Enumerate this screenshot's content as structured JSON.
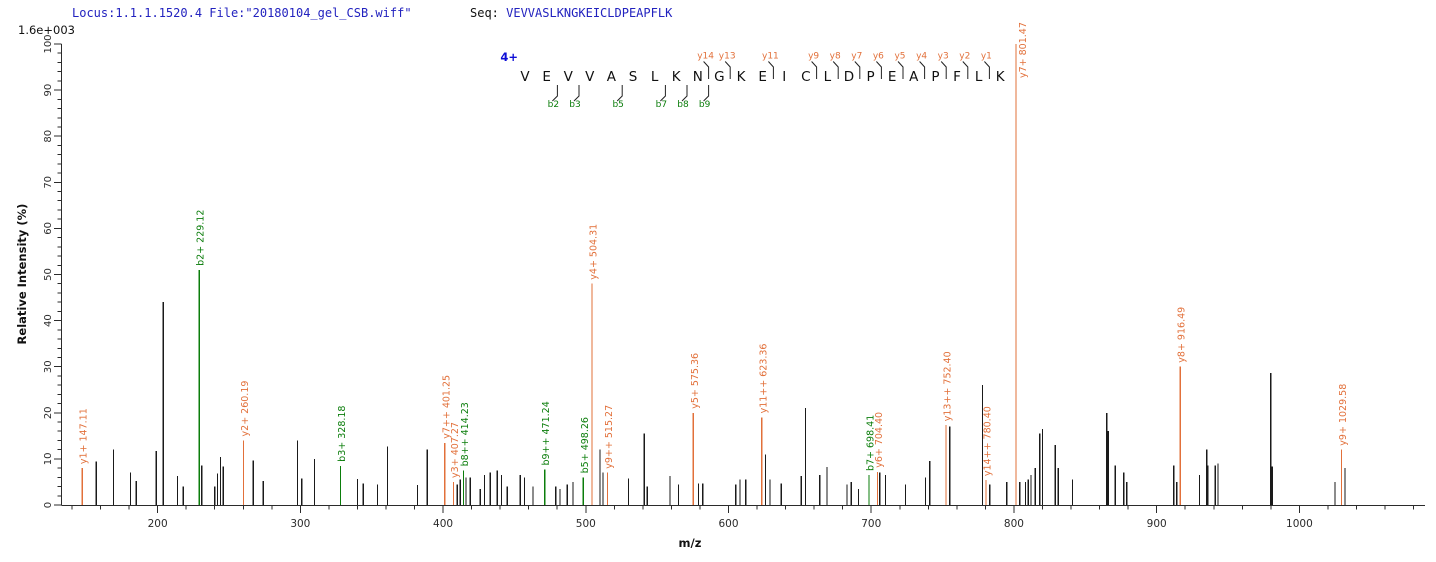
{
  "header": {
    "locus_text": "Locus:1.1.1.1520.4 File:\"20180104_gel_CSB.wiff\"",
    "seq_label": "Seq: ",
    "seq_value": "VEVVASLKNGKEICLDPEAPFLK"
  },
  "colors": {
    "y_ion": "#E2703A",
    "b_ion": "#0B7D0B",
    "peak": "#1A1A1A",
    "header_text": "#2222BF",
    "charge": "#0D0DD6",
    "axis": "#2B2B2B"
  },
  "sequence_ladder": {
    "charge_label": "4+",
    "residues": [
      "V",
      "E",
      "V",
      "V",
      "A",
      "S",
      "L",
      "K",
      "N",
      "G",
      "K",
      "E",
      "I",
      "C",
      "L",
      "D",
      "P",
      "E",
      "A",
      "P",
      "F",
      "L",
      "K"
    ],
    "y_ions": [
      {
        "name": "y14",
        "after_residue": 9
      },
      {
        "name": "y13",
        "after_residue": 10
      },
      {
        "name": "y11",
        "after_residue": 12
      },
      {
        "name": "y9",
        "after_residue": 14
      },
      {
        "name": "y8",
        "after_residue": 15
      },
      {
        "name": "y7",
        "after_residue": 16
      },
      {
        "name": "y6",
        "after_residue": 17
      },
      {
        "name": "y5",
        "after_residue": 18
      },
      {
        "name": "y4",
        "after_residue": 19
      },
      {
        "name": "y3",
        "after_residue": 20
      },
      {
        "name": "y2",
        "after_residue": 21
      },
      {
        "name": "y1",
        "after_residue": 22
      }
    ],
    "b_ions": [
      {
        "name": "b2",
        "after_residue": 2
      },
      {
        "name": "b3",
        "after_residue": 3
      },
      {
        "name": "b5",
        "after_residue": 5
      },
      {
        "name": "b7",
        "after_residue": 7
      },
      {
        "name": "b8",
        "after_residue": 8
      },
      {
        "name": "b9",
        "after_residue": 9
      }
    ]
  },
  "chart_data": {
    "type": "bar",
    "variant": "ms2-centroid-spectrum",
    "title": "",
    "xlabel": "m/z",
    "ylabel": "Relative  Intensity (%)",
    "intensity_scale_note": "1.6e+003",
    "xlim": [
      133,
      1088
    ],
    "ylim": [
      0,
      100
    ],
    "x_major_ticks": [
      200,
      300,
      400,
      500,
      600,
      700,
      800,
      900,
      1000
    ],
    "x_minor_step": 20,
    "y_major_step": 10,
    "y_minor_step": 2,
    "grid": false,
    "legend": "none",
    "annotated_peaks": [
      {
        "label": "y1+ 147.11",
        "mz": 147.11,
        "intensity": 8,
        "series": "y"
      },
      {
        "label": "b2+ 229.12",
        "mz": 229.12,
        "intensity": 51,
        "series": "b"
      },
      {
        "label": "y2+ 260.19",
        "mz": 260.19,
        "intensity": 14,
        "series": "y"
      },
      {
        "label": "b3+ 328.18",
        "mz": 328.18,
        "intensity": 8.5,
        "series": "b"
      },
      {
        "label": "y7++ 401.25",
        "mz": 401.25,
        "intensity": 13.5,
        "series": "y"
      },
      {
        "label": "y3+ 407.27",
        "mz": 407.27,
        "intensity": 5,
        "series": "y"
      },
      {
        "label": "b8++ 414.23",
        "mz": 414.23,
        "intensity": 7.5,
        "series": "b"
      },
      {
        "label": "b9++ 471.24",
        "mz": 471.24,
        "intensity": 7.7,
        "series": "b"
      },
      {
        "label": "b5+ 498.26",
        "mz": 498.26,
        "intensity": 6,
        "series": "b"
      },
      {
        "label": "y4+ 504.31",
        "mz": 504.31,
        "intensity": 48,
        "series": "y"
      },
      {
        "label": "y9++ 515.27",
        "mz": 515.27,
        "intensity": 7,
        "series": "y"
      },
      {
        "label": "y5+ 575.36",
        "mz": 575.36,
        "intensity": 20,
        "series": "y"
      },
      {
        "label": "y11++ 623.36",
        "mz": 623.36,
        "intensity": 19,
        "series": "y"
      },
      {
        "label": "b7+ 698.41",
        "mz": 698.41,
        "intensity": 6.5,
        "series": "b"
      },
      {
        "label": "y6+ 704.40",
        "mz": 704.4,
        "intensity": 7.2,
        "series": "y"
      },
      {
        "label": "y13++ 752.40",
        "mz": 752.4,
        "intensity": 17.3,
        "series": "y"
      },
      {
        "label": "y14++ 780.40",
        "mz": 780.4,
        "intensity": 5.4,
        "series": "y"
      },
      {
        "label": "y7+ 801.47",
        "mz": 801.47,
        "intensity": 100,
        "series": "y"
      },
      {
        "label": "y8+ 916.49",
        "mz": 916.49,
        "intensity": 30,
        "series": "y"
      },
      {
        "label": "y9+ 1029.58",
        "mz": 1029.58,
        "intensity": 12,
        "series": "y"
      }
    ],
    "unlabeled_peaks": [
      [
        157,
        9.4
      ],
      [
        169,
        12
      ],
      [
        181,
        7
      ],
      [
        185,
        5.2
      ],
      [
        199,
        11.7
      ],
      [
        204,
        44
      ],
      [
        214,
        6.3
      ],
      [
        218,
        4
      ],
      [
        231,
        8.6
      ],
      [
        240,
        4
      ],
      [
        242,
        6.8
      ],
      [
        244,
        10.4
      ],
      [
        246,
        8.3
      ],
      [
        267,
        9.7
      ],
      [
        274,
        5.2
      ],
      [
        298,
        14
      ],
      [
        301,
        5.8
      ],
      [
        310,
        10
      ],
      [
        340,
        5.6
      ],
      [
        344,
        4.7
      ],
      [
        354,
        4.5
      ],
      [
        361,
        12.7
      ],
      [
        382,
        4.3
      ],
      [
        389,
        12
      ],
      [
        410,
        4.5
      ],
      [
        412,
        5.5
      ],
      [
        416,
        6
      ],
      [
        419,
        6
      ],
      [
        426,
        3.5
      ],
      [
        429,
        6.5
      ],
      [
        433,
        7
      ],
      [
        438,
        7.5
      ],
      [
        441,
        6.5
      ],
      [
        445,
        4
      ],
      [
        454,
        6.5
      ],
      [
        457,
        6
      ],
      [
        463,
        4
      ],
      [
        479,
        4
      ],
      [
        482,
        3.5
      ],
      [
        487,
        4.5
      ],
      [
        491,
        5
      ],
      [
        510,
        12
      ],
      [
        512,
        7
      ],
      [
        530,
        5.8
      ],
      [
        541,
        15.5
      ],
      [
        543,
        4
      ],
      [
        559,
        6.3
      ],
      [
        565,
        4.5
      ],
      [
        579,
        4.7
      ],
      [
        582,
        4.7
      ],
      [
        605,
        4.5
      ],
      [
        608,
        5.5
      ],
      [
        612,
        5.5
      ],
      [
        626,
        11
      ],
      [
        629,
        5.5
      ],
      [
        637,
        4.7
      ],
      [
        651,
        6.3
      ],
      [
        654,
        21
      ],
      [
        664,
        6.5
      ],
      [
        669,
        8.2
      ],
      [
        683,
        4.5
      ],
      [
        686,
        5
      ],
      [
        691,
        3.5
      ],
      [
        706,
        7
      ],
      [
        710,
        6.5
      ],
      [
        724,
        4.5
      ],
      [
        738,
        6
      ],
      [
        741,
        9.5
      ],
      [
        755,
        17
      ],
      [
        778,
        26
      ],
      [
        783,
        4.5
      ],
      [
        795,
        5
      ],
      [
        804,
        5
      ],
      [
        808,
        5
      ],
      [
        810,
        5.5
      ],
      [
        812,
        6.5
      ],
      [
        815,
        8
      ],
      [
        818,
        15.5
      ],
      [
        820,
        16.5
      ],
      [
        829,
        13
      ],
      [
        831,
        8
      ],
      [
        841,
        5.5
      ],
      [
        865,
        20
      ],
      [
        866,
        16
      ],
      [
        871,
        8.6
      ],
      [
        877,
        7
      ],
      [
        879,
        5
      ],
      [
        912,
        8.6
      ],
      [
        914,
        5
      ],
      [
        930,
        6.5
      ],
      [
        935,
        12
      ],
      [
        936,
        8.6
      ],
      [
        941,
        8.6
      ],
      [
        943,
        9
      ],
      [
        980,
        28.6
      ],
      [
        981,
        8.3
      ],
      [
        1025,
        5
      ],
      [
        1032,
        8
      ]
    ]
  }
}
